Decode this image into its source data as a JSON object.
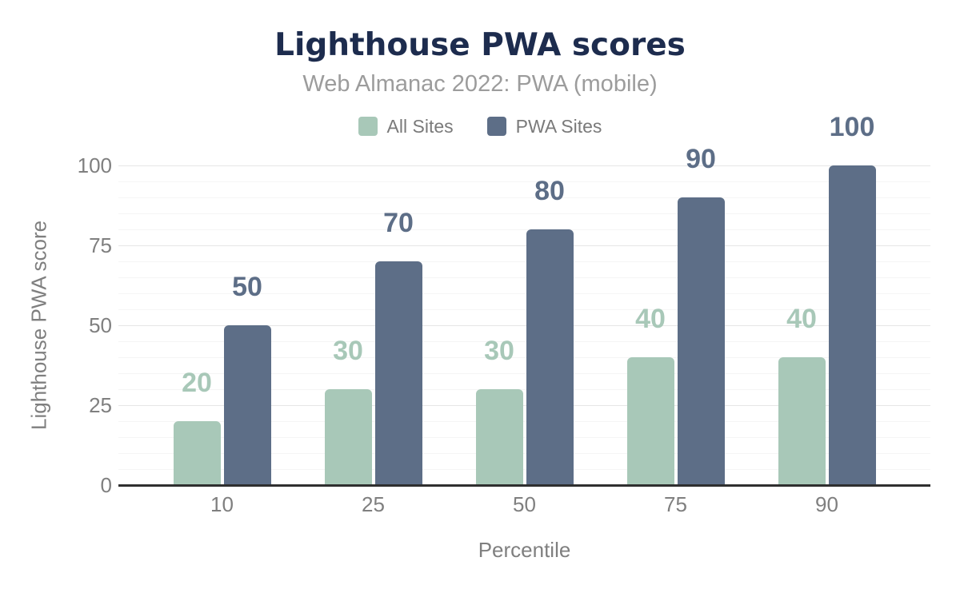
{
  "title": "Lighthouse PWA scores",
  "subtitle": "Web Almanac 2022: PWA (mobile)",
  "legend": {
    "items": [
      {
        "label": "All Sites",
        "color": "#a8c8b8"
      },
      {
        "label": "PWA Sites",
        "color": "#5d6e87"
      }
    ]
  },
  "colors": {
    "title": "#1d2c4e",
    "subtitle": "#9c9c9c",
    "axis_text": "#7f7f7f",
    "axis_line": "#2f2f2f",
    "grid_major": "#e6e6e6",
    "grid_minor": "#f5f5f5",
    "series_all_sites": "#a8c8b8",
    "series_pwa_sites": "#5d6e87"
  },
  "chart_data": {
    "type": "bar",
    "title": "Lighthouse PWA scores",
    "subtitle": "Web Almanac 2022: PWA (mobile)",
    "categories": [
      "10",
      "25",
      "50",
      "75",
      "90"
    ],
    "series": [
      {
        "name": "All Sites",
        "color": "#a8c8b8",
        "values": [
          20,
          30,
          30,
          40,
          40
        ]
      },
      {
        "name": "PWA Sites",
        "color": "#5d6e87",
        "values": [
          50,
          70,
          80,
          90,
          100
        ]
      }
    ],
    "xlabel": "Percentile",
    "ylabel": "Lighthouse PWA score",
    "ylim": [
      0,
      100
    ],
    "yticks": [
      0,
      25,
      50,
      75,
      100
    ],
    "minor_tick_step": 5,
    "grid": true,
    "legend_position": "top",
    "data_labels": true
  }
}
